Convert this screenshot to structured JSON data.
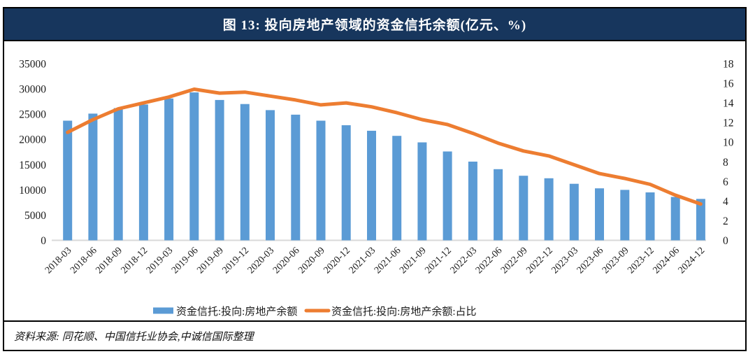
{
  "header": {
    "title": "图 13: 投向房地产领域的资金信托余额(亿元、%)"
  },
  "footer": {
    "source": "资料来源: 同花顺、中国信托业协会,中诚信国际整理"
  },
  "colors": {
    "header_bg": "#17365D",
    "bar": "#5B9BD5",
    "line": "#ED7D31",
    "axis_line": "#D9D9D9",
    "title_text": "#FFFFFF"
  },
  "chart_data": {
    "type": "bar",
    "title": "图 13: 投向房地产领域的资金信托余额(亿元、%)",
    "xlabel": "",
    "ylabel_left": "亿元",
    "ylabel_right": "%",
    "legend_position": "bottom",
    "grid": false,
    "left_axis": {
      "min": 0,
      "max": 35000,
      "step": 5000
    },
    "right_axis": {
      "min": 0,
      "max": 18,
      "step": 2
    },
    "categories": [
      "2018-03",
      "2018-06",
      "2018-09",
      "2018-12",
      "2019-03",
      "2019-06",
      "2019-09",
      "2019-12",
      "2020-03",
      "2020-06",
      "2020-09",
      "2020-12",
      "2021-03",
      "2021-06",
      "2021-09",
      "2021-12",
      "2022-03",
      "2022-06",
      "2022-09",
      "2022-12",
      "2023-03",
      "2023-06",
      "2023-09",
      "2023-12",
      "2024-06",
      "2024-12"
    ],
    "series": [
      {
        "name": "资金信托:投向:房地产余额",
        "type": "bar",
        "axis": "left",
        "color": "#5B9BD5",
        "values": [
          23700,
          25100,
          26200,
          26900,
          28100,
          29300,
          27800,
          27000,
          25800,
          24900,
          23700,
          22800,
          21700,
          20700,
          19400,
          17600,
          15600,
          14100,
          12800,
          12300,
          11200,
          10300,
          10000,
          9500,
          8600,
          8200
        ]
      },
      {
        "name": "资金信托:投向:房地产余额:占比",
        "type": "line",
        "axis": "right",
        "color": "#ED7D31",
        "values": [
          11.0,
          12.3,
          13.4,
          14.0,
          14.6,
          15.4,
          15.0,
          15.1,
          14.7,
          14.3,
          13.8,
          14.0,
          13.6,
          13.0,
          12.3,
          11.8,
          10.9,
          9.9,
          9.1,
          8.6,
          7.7,
          6.8,
          6.3,
          5.7,
          4.6,
          3.7
        ]
      }
    ]
  }
}
